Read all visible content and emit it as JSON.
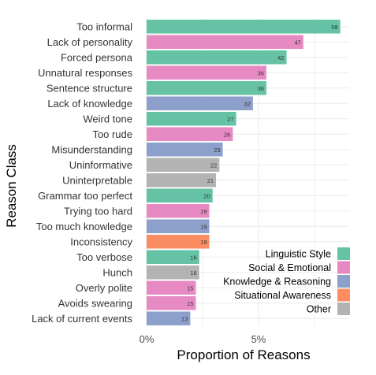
{
  "chart_data": {
    "type": "bar",
    "orientation": "horizontal",
    "xlabel": "Proportion of Reasons",
    "ylabel": "Reason Class",
    "xlim": [
      0,
      9.05
    ],
    "x_ticks": [
      {
        "value": 0,
        "label": "0%"
      },
      {
        "value": 5,
        "label": "5%"
      }
    ],
    "grid": true,
    "legend_position": "bottom-right",
    "colors": {
      "Linguistic Style": "#66c2a5",
      "Social & Emotional": "#e78ac3",
      "Knowledge & Reasoning": "#8da0cb",
      "Situational Awareness": "#fc8d62",
      "Other": "#b3b3b3"
    },
    "legend": [
      "Linguistic Style",
      "Social & Emotional",
      "Knowledge & Reasoning",
      "Situational Awareness",
      "Other"
    ],
    "bars": [
      {
        "label": "Too informal",
        "proportion": 8.65,
        "count": 58,
        "group": "Linguistic Style"
      },
      {
        "label": "Lack of personality",
        "proportion": 7.0,
        "count": 47,
        "group": "Social & Emotional"
      },
      {
        "label": "Forced persona",
        "proportion": 6.25,
        "count": 42,
        "group": "Linguistic Style"
      },
      {
        "label": "Unnatural responses",
        "proportion": 5.35,
        "count": 36,
        "group": "Social & Emotional"
      },
      {
        "label": "Sentence structure",
        "proportion": 5.35,
        "count": 36,
        "group": "Linguistic Style"
      },
      {
        "label": "Lack of knowledge",
        "proportion": 4.75,
        "count": 32,
        "group": "Knowledge & Reasoning"
      },
      {
        "label": "Weird tone",
        "proportion": 4.0,
        "count": 27,
        "group": "Linguistic Style"
      },
      {
        "label": "Too rude",
        "proportion": 3.85,
        "count": 26,
        "group": "Social & Emotional"
      },
      {
        "label": "Misunderstanding",
        "proportion": 3.4,
        "count": 23,
        "group": "Knowledge & Reasoning"
      },
      {
        "label": "Uninformative",
        "proportion": 3.25,
        "count": 22,
        "group": "Other"
      },
      {
        "label": "Uninterpretable",
        "proportion": 3.1,
        "count": 21,
        "group": "Other"
      },
      {
        "label": "Grammar too perfect",
        "proportion": 2.95,
        "count": 20,
        "group": "Linguistic Style"
      },
      {
        "label": "Trying too hard",
        "proportion": 2.8,
        "count": 19,
        "group": "Social & Emotional"
      },
      {
        "label": "Too much knowledge",
        "proportion": 2.8,
        "count": 19,
        "group": "Knowledge & Reasoning"
      },
      {
        "label": "Inconsistency",
        "proportion": 2.8,
        "count": 19,
        "group": "Situational Awareness"
      },
      {
        "label": "Too verbose",
        "proportion": 2.35,
        "count": 16,
        "group": "Linguistic Style"
      },
      {
        "label": "Hunch",
        "proportion": 2.35,
        "count": 16,
        "group": "Other"
      },
      {
        "label": "Overly polite",
        "proportion": 2.2,
        "count": 15,
        "group": "Social & Emotional"
      },
      {
        "label": "Avoids swearing",
        "proportion": 2.2,
        "count": 15,
        "group": "Social & Emotional"
      },
      {
        "label": "Lack of current events",
        "proportion": 1.95,
        "count": 13,
        "group": "Knowledge & Reasoning"
      }
    ]
  }
}
